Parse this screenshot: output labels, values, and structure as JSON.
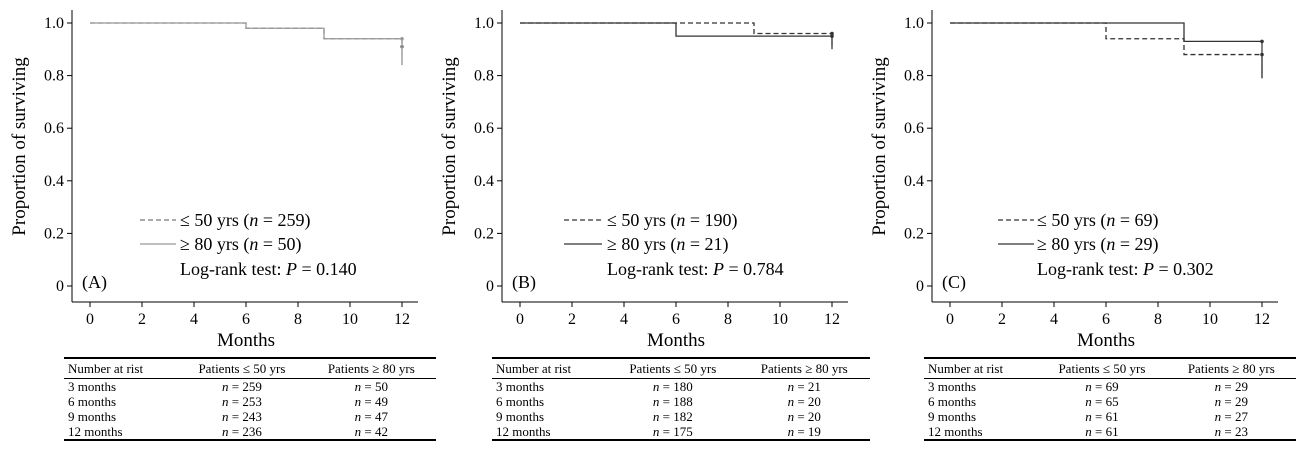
{
  "chart_data": [
    {
      "type": "line",
      "panel_label": "(A)",
      "xlabel": "Months",
      "ylabel": "Proportion of surviving",
      "xlim": [
        0,
        12
      ],
      "ylim": [
        0,
        1.0
      ],
      "xticks": [
        0,
        2,
        4,
        6,
        8,
        10,
        12
      ],
      "yticks": [
        0,
        0.2,
        0.4,
        0.6,
        0.8,
        1.0
      ],
      "ytick_labels": [
        "0",
        "0.2",
        "0.4",
        "0.6",
        "0.8",
        "1.0"
      ],
      "legend_position": "bottom-left",
      "series": [
        {
          "legend": "≤ 50 yrs (",
          "n_text": "n",
          "n_rest": " = 259)",
          "style": "dashed",
          "color": "#777777",
          "steps": [
            [
              0,
              1.0
            ],
            [
              6,
              0.98
            ],
            [
              9,
              0.94
            ],
            [
              12,
              0.91
            ]
          ],
          "end_drop": 0.84
        },
        {
          "legend": "≥ 80 yrs (",
          "n_text": "n",
          "n_rest": " = 50)",
          "style": "solid",
          "color": "#999999",
          "steps": [
            [
              0,
              1.0
            ],
            [
              6,
              0.98
            ],
            [
              9,
              0.94
            ],
            [
              12,
              0.94
            ]
          ],
          "end_drop": 0.84
        }
      ],
      "logrank_prefix": "Log-rank test: ",
      "logrank_p": "P",
      "logrank_value": " = 0.140",
      "table": {
        "headers": [
          "Number at rist",
          "Patients ≤ 50 yrs",
          "Patients ≥ 80 yrs"
        ],
        "rows": [
          {
            "label": "3 months",
            "a": " = 259",
            "b": " = 50"
          },
          {
            "label": "6 months",
            "a": " = 253",
            "b": " = 49"
          },
          {
            "label": "9 months",
            "a": " = 243",
            "b": " = 47"
          },
          {
            "label": "12 months",
            "a": " = 236",
            "b": " = 42"
          }
        ]
      }
    },
    {
      "type": "line",
      "panel_label": "(B)",
      "xlabel": "Months",
      "ylabel": "Proportion of surviving",
      "xlim": [
        0,
        12
      ],
      "ylim": [
        0,
        1.0
      ],
      "xticks": [
        0,
        2,
        4,
        6,
        8,
        10,
        12
      ],
      "yticks": [
        0,
        0.2,
        0.4,
        0.6,
        0.8,
        1.0
      ],
      "ytick_labels": [
        "0",
        "0.2",
        "0.4",
        "0.6",
        "0.8",
        "1.0"
      ],
      "legend_position": "bottom-left",
      "series": [
        {
          "legend": "≤ 50 yrs (",
          "n_text": "n",
          "n_rest": " = 190)",
          "style": "dashed",
          "color": "#333333",
          "steps": [
            [
              0,
              1.0
            ],
            [
              9,
              0.96
            ],
            [
              12,
              0.96
            ]
          ],
          "end_drop": 0.9
        },
        {
          "legend": "≥ 80 yrs (",
          "n_text": "n",
          "n_rest": " = 21)",
          "style": "solid",
          "color": "#333333",
          "steps": [
            [
              0,
              1.0
            ],
            [
              6,
              0.95
            ],
            [
              12,
              0.95
            ]
          ],
          "end_drop": 0.91
        }
      ],
      "logrank_prefix": "Log-rank test: ",
      "logrank_p": "P",
      "logrank_value": " = 0.784",
      "table": {
        "headers": [
          "Number at rist",
          "Patients ≤ 50 yrs",
          "Patients ≥ 80 yrs"
        ],
        "rows": [
          {
            "label": "3 months",
            "a": " = 180",
            "b": " = 21"
          },
          {
            "label": "6 months",
            "a": " = 188",
            "b": " = 20"
          },
          {
            "label": "9 months",
            "a": " = 182",
            "b": " = 20"
          },
          {
            "label": "12 months",
            "a": " = 175",
            "b": " = 19"
          }
        ]
      }
    },
    {
      "type": "line",
      "panel_label": "(C)",
      "xlabel": "Months",
      "ylabel": "Proportion of surviving",
      "xlim": [
        0,
        12
      ],
      "ylim": [
        0,
        1.0
      ],
      "xticks": [
        0,
        2,
        4,
        6,
        8,
        10,
        12
      ],
      "yticks": [
        0,
        0.2,
        0.4,
        0.6,
        0.8,
        1.0
      ],
      "ytick_labels": [
        "0",
        "0.2",
        "0.4",
        "0.6",
        "0.8",
        "1.0"
      ],
      "legend_position": "bottom-left",
      "series": [
        {
          "legend": "≤ 50 yrs (",
          "n_text": "n",
          "n_rest": " = 69)",
          "style": "dashed",
          "color": "#333333",
          "steps": [
            [
              0,
              1.0
            ],
            [
              6,
              0.94
            ],
            [
              9,
              0.88
            ],
            [
              12,
              0.88
            ]
          ],
          "end_drop": 0.79
        },
        {
          "legend": "≥ 80 yrs (",
          "n_text": "n",
          "n_rest": " = 29)",
          "style": "solid",
          "color": "#333333",
          "steps": [
            [
              0,
              1.0
            ],
            [
              9,
              0.93
            ],
            [
              12,
              0.93
            ]
          ],
          "end_drop": 0.79
        }
      ],
      "logrank_prefix": "Log-rank test: ",
      "logrank_p": "P",
      "logrank_value": " = 0.302",
      "table": {
        "headers": [
          "Number at rist",
          "Patients ≤ 50 yrs",
          "Patients ≥ 80 yrs"
        ],
        "rows": [
          {
            "label": "3 months",
            "a": " = 69",
            "b": " = 29"
          },
          {
            "label": "6 months",
            "a": " = 65",
            "b": " = 29"
          },
          {
            "label": "9 months",
            "a": " = 61",
            "b": " = 27"
          },
          {
            "label": "12 months",
            "a": " = 61",
            "b": " = 23"
          }
        ]
      }
    }
  ]
}
